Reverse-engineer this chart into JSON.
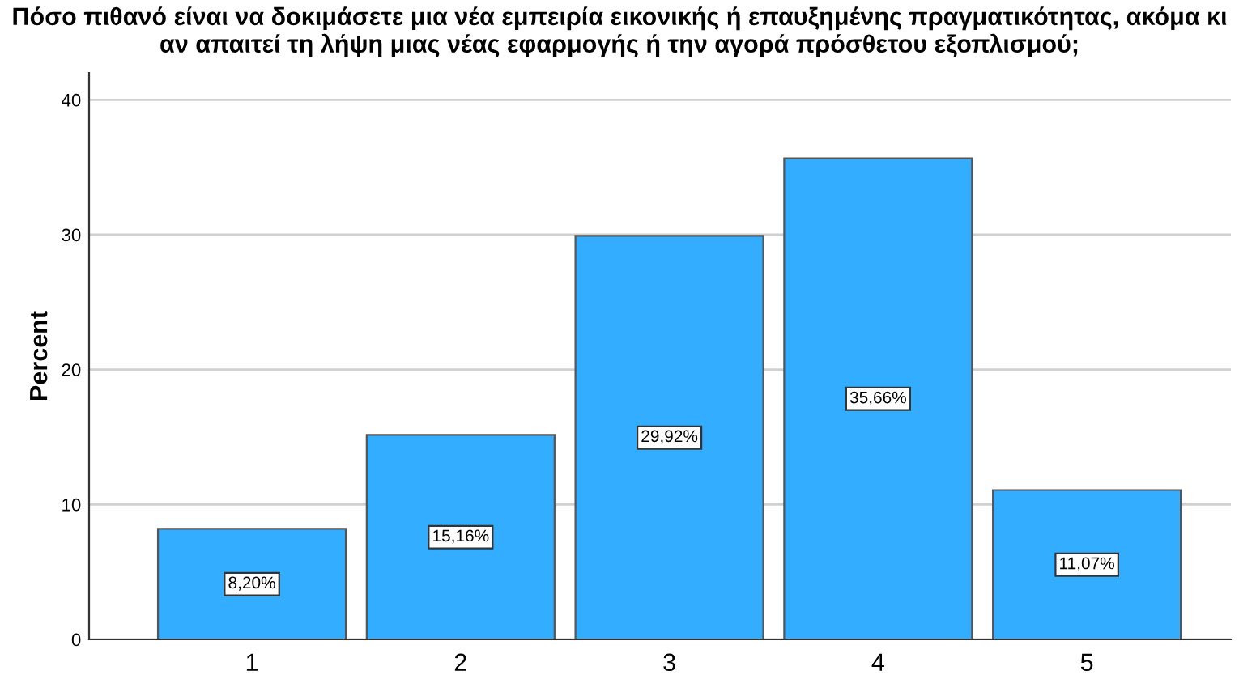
{
  "chart_data": {
    "type": "bar",
    "title": "Πόσο πιθανό είναι να δοκιμάσετε μια νέα εμπειρία εικονικής ή επαυξημένης πραγματικότητας, ακόμα κι αν απαιτεί τη λήψη μιας νέας εφαρμογής ή την αγορά πρόσθετου εξοπλισμού;",
    "ylabel": "Percent",
    "categories": [
      "1",
      "2",
      "3",
      "4",
      "5"
    ],
    "values": [
      8.2,
      15.16,
      29.92,
      35.66,
      11.07
    ],
    "value_labels": [
      "8,20%",
      "15,16%",
      "29,92%",
      "35,66%",
      "11,07%"
    ],
    "color": "#33adff",
    "ylim": [
      0,
      42
    ],
    "yticks": [
      0,
      10,
      20,
      30,
      40
    ],
    "grid": "y"
  }
}
